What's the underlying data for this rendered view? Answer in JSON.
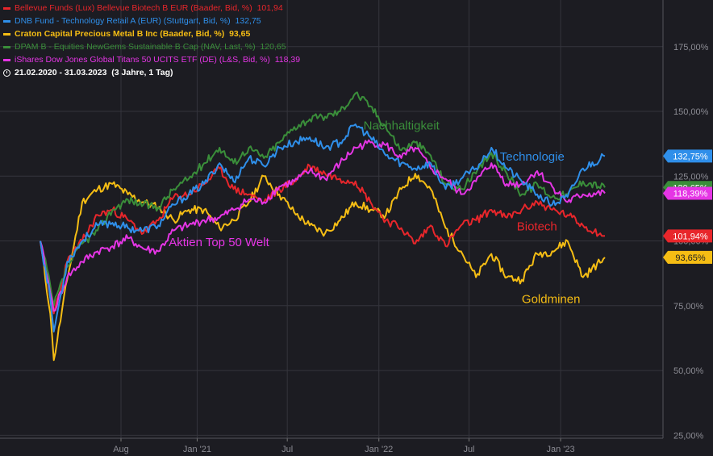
{
  "legend": {
    "items": [
      {
        "label": "Bellevue Funds (Lux) Bellevue Biotech B EUR (Baader, Bid, %)",
        "value": "101,94",
        "color": "#e8262b",
        "bold": false
      },
      {
        "label": "DNB Fund - Technology Retail A (EUR) (Stuttgart, Bid, %)",
        "value": "132,75",
        "color": "#2f8fea",
        "bold": false
      },
      {
        "label": "Craton Capital Precious Metal B Inc (Baader, Bid, %)",
        "value": "93,65",
        "color": "#f5bd14",
        "bold": true
      },
      {
        "label": "DPAM B - Equities NewGems Sustainable B Cap (NAV, Last, %)",
        "value": "120,65",
        "color": "#3a8e3a",
        "bold": false
      },
      {
        "label": "iShares Dow Jones Global Titans 50 UCITS ETF (DE) (L&S, Bid, %)",
        "value": "118,39",
        "color": "#e535e5",
        "bold": false
      }
    ],
    "period": "21.02.2020 - 31.03.2023",
    "period_detail": "(3 Jahre, 1 Tag)"
  },
  "colors": {
    "background": "#1c1c22",
    "grid": "#34343c",
    "axis_text": "#8c8c94",
    "biotech": "#e8262b",
    "technology": "#2f8fea",
    "gold": "#f5bd14",
    "sustainable": "#3a8e3a",
    "world": "#e535e5"
  },
  "chart_data": {
    "type": "line",
    "x_ticks": [
      "Aug",
      "Jan '21",
      "Jul",
      "Jan '22",
      "Jul",
      "Jan '23"
    ],
    "y_ticks": [
      "25,00%",
      "50,00%",
      "75,00%",
      "100,00%",
      "125,00%",
      "150,00%",
      "175,00%"
    ],
    "ylim": [
      17,
      193
    ],
    "x_range": [
      "2020-02-21",
      "2023-03-31"
    ],
    "annotations": [
      {
        "text": "Nachhaltigkeit",
        "series": "sustainable"
      },
      {
        "text": "Technologie",
        "series": "technology"
      },
      {
        "text": "Biotech",
        "series": "biotech"
      },
      {
        "text": "Aktien Top 50 Welt",
        "series": "world"
      },
      {
        "text": "Goldminen",
        "series": "gold"
      }
    ],
    "series": [
      {
        "key": "biotech",
        "color": "#e8262b",
        "last_label": "101,94%",
        "points": [
          [
            "2020-02-21",
            100
          ],
          [
            "2020-03-12",
            78
          ],
          [
            "2020-03-19",
            72
          ],
          [
            "2020-04-15",
            92
          ],
          [
            "2020-05-15",
            100
          ],
          [
            "2020-06-15",
            110
          ],
          [
            "2020-07-15",
            112
          ],
          [
            "2020-08-15",
            108
          ],
          [
            "2020-09-15",
            103
          ],
          [
            "2020-10-15",
            108
          ],
          [
            "2020-11-15",
            117
          ],
          [
            "2020-12-15",
            118
          ],
          [
            "2021-01-15",
            122
          ],
          [
            "2021-02-15",
            128
          ],
          [
            "2021-03-15",
            120
          ],
          [
            "2021-04-15",
            118
          ],
          [
            "2021-05-15",
            115
          ],
          [
            "2021-06-15",
            120
          ],
          [
            "2021-07-15",
            123
          ],
          [
            "2021-08-15",
            129
          ],
          [
            "2021-09-15",
            126
          ],
          [
            "2021-10-15",
            124
          ],
          [
            "2021-11-15",
            123
          ],
          [
            "2021-12-15",
            115
          ],
          [
            "2022-01-15",
            108
          ],
          [
            "2022-02-15",
            105
          ],
          [
            "2022-03-15",
            99
          ],
          [
            "2022-04-15",
            106
          ],
          [
            "2022-05-15",
            98
          ],
          [
            "2022-06-15",
            106
          ],
          [
            "2022-07-15",
            108
          ],
          [
            "2022-08-15",
            112
          ],
          [
            "2022-09-15",
            109
          ],
          [
            "2022-10-15",
            112
          ],
          [
            "2022-11-15",
            115
          ],
          [
            "2022-12-15",
            112
          ],
          [
            "2023-01-15",
            110
          ],
          [
            "2023-02-15",
            106
          ],
          [
            "2023-03-31",
            101.94
          ]
        ]
      },
      {
        "key": "technology",
        "color": "#2f8fea",
        "last_label": "132,75%",
        "points": [
          [
            "2020-02-21",
            100
          ],
          [
            "2020-03-12",
            78
          ],
          [
            "2020-03-19",
            65
          ],
          [
            "2020-04-15",
            92
          ],
          [
            "2020-05-15",
            100
          ],
          [
            "2020-06-15",
            106
          ],
          [
            "2020-07-15",
            107
          ],
          [
            "2020-08-15",
            105
          ],
          [
            "2020-09-15",
            104
          ],
          [
            "2020-10-15",
            106
          ],
          [
            "2020-11-15",
            114
          ],
          [
            "2020-12-15",
            118
          ],
          [
            "2021-01-15",
            122
          ],
          [
            "2021-02-15",
            130
          ],
          [
            "2021-03-15",
            123
          ],
          [
            "2021-04-15",
            132
          ],
          [
            "2021-05-15",
            129
          ],
          [
            "2021-06-15",
            136
          ],
          [
            "2021-07-15",
            138
          ],
          [
            "2021-08-15",
            140
          ],
          [
            "2021-09-15",
            136
          ],
          [
            "2021-10-15",
            138
          ],
          [
            "2021-11-15",
            145
          ],
          [
            "2021-12-15",
            140
          ],
          [
            "2022-01-15",
            133
          ],
          [
            "2022-02-15",
            130
          ],
          [
            "2022-03-15",
            128
          ],
          [
            "2022-04-15",
            130
          ],
          [
            "2022-05-15",
            120
          ],
          [
            "2022-06-15",
            124
          ],
          [
            "2022-07-15",
            128
          ],
          [
            "2022-08-15",
            136
          ],
          [
            "2022-09-15",
            128
          ],
          [
            "2022-10-15",
            123
          ],
          [
            "2022-11-15",
            118
          ],
          [
            "2022-12-15",
            114
          ],
          [
            "2023-01-15",
            117
          ],
          [
            "2023-02-15",
            128
          ],
          [
            "2023-03-31",
            132.75
          ]
        ]
      },
      {
        "key": "gold",
        "color": "#f5bd14",
        "last_label": "93,65%",
        "points": [
          [
            "2020-02-21",
            100
          ],
          [
            "2020-03-12",
            72
          ],
          [
            "2020-03-19",
            54
          ],
          [
            "2020-04-15",
            85
          ],
          [
            "2020-05-15",
            115
          ],
          [
            "2020-06-15",
            120
          ],
          [
            "2020-07-15",
            122
          ],
          [
            "2020-08-15",
            118
          ],
          [
            "2020-09-15",
            115
          ],
          [
            "2020-10-15",
            113
          ],
          [
            "2020-11-15",
            108
          ],
          [
            "2020-12-15",
            112
          ],
          [
            "2021-01-15",
            112
          ],
          [
            "2021-02-15",
            105
          ],
          [
            "2021-03-15",
            108
          ],
          [
            "2021-04-15",
            115
          ],
          [
            "2021-05-15",
            125
          ],
          [
            "2021-06-15",
            118
          ],
          [
            "2021-07-15",
            111
          ],
          [
            "2021-08-15",
            106
          ],
          [
            "2021-09-15",
            103
          ],
          [
            "2021-10-15",
            108
          ],
          [
            "2021-11-15",
            115
          ],
          [
            "2021-12-15",
            112
          ],
          [
            "2022-01-15",
            110
          ],
          [
            "2022-02-15",
            120
          ],
          [
            "2022-03-15",
            126
          ],
          [
            "2022-04-15",
            120
          ],
          [
            "2022-05-15",
            105
          ],
          [
            "2022-06-15",
            96
          ],
          [
            "2022-07-15",
            86
          ],
          [
            "2022-08-15",
            95
          ],
          [
            "2022-09-15",
            86
          ],
          [
            "2022-10-15",
            85
          ],
          [
            "2022-11-15",
            95
          ],
          [
            "2022-12-15",
            96
          ],
          [
            "2023-01-15",
            100
          ],
          [
            "2023-02-15",
            86
          ],
          [
            "2023-03-31",
            93.65
          ]
        ]
      },
      {
        "key": "sustainable",
        "color": "#3a8e3a",
        "last_label": "120,65%",
        "points": [
          [
            "2020-02-21",
            100
          ],
          [
            "2020-03-12",
            83
          ],
          [
            "2020-03-19",
            75
          ],
          [
            "2020-04-15",
            90
          ],
          [
            "2020-05-15",
            99
          ],
          [
            "2020-06-15",
            104
          ],
          [
            "2020-07-15",
            112
          ],
          [
            "2020-08-15",
            116
          ],
          [
            "2020-09-15",
            114
          ],
          [
            "2020-10-15",
            113
          ],
          [
            "2020-11-15",
            120
          ],
          [
            "2020-12-15",
            124
          ],
          [
            "2021-01-15",
            130
          ],
          [
            "2021-02-15",
            136
          ],
          [
            "2021-03-15",
            130
          ],
          [
            "2021-04-15",
            136
          ],
          [
            "2021-05-15",
            132
          ],
          [
            "2021-06-15",
            138
          ],
          [
            "2021-07-15",
            144
          ],
          [
            "2021-08-15",
            147
          ],
          [
            "2021-09-15",
            148
          ],
          [
            "2021-10-15",
            150
          ],
          [
            "2021-11-15",
            157
          ],
          [
            "2021-12-15",
            152
          ],
          [
            "2022-01-15",
            144
          ],
          [
            "2022-02-15",
            135
          ],
          [
            "2022-03-15",
            138
          ],
          [
            "2022-04-15",
            133
          ],
          [
            "2022-05-15",
            122
          ],
          [
            "2022-06-15",
            120
          ],
          [
            "2022-07-15",
            126
          ],
          [
            "2022-08-15",
            134
          ],
          [
            "2022-09-15",
            126
          ],
          [
            "2022-10-15",
            118
          ],
          [
            "2022-11-15",
            122
          ],
          [
            "2022-12-15",
            117
          ],
          [
            "2023-01-15",
            118
          ],
          [
            "2023-02-15",
            123
          ],
          [
            "2023-03-31",
            120.65
          ]
        ]
      },
      {
        "key": "world",
        "color": "#e535e5",
        "last_label": "118,39%",
        "points": [
          [
            "2020-02-21",
            100
          ],
          [
            "2020-03-12",
            80
          ],
          [
            "2020-03-19",
            73
          ],
          [
            "2020-04-15",
            86
          ],
          [
            "2020-05-15",
            92
          ],
          [
            "2020-06-15",
            96
          ],
          [
            "2020-07-15",
            98
          ],
          [
            "2020-08-15",
            101
          ],
          [
            "2020-09-15",
            97
          ],
          [
            "2020-10-15",
            96
          ],
          [
            "2020-11-15",
            104
          ],
          [
            "2020-12-15",
            106
          ],
          [
            "2021-01-15",
            108
          ],
          [
            "2021-02-15",
            109
          ],
          [
            "2021-03-15",
            112
          ],
          [
            "2021-04-15",
            116
          ],
          [
            "2021-05-15",
            115
          ],
          [
            "2021-06-15",
            121
          ],
          [
            "2021-07-15",
            123
          ],
          [
            "2021-08-15",
            127
          ],
          [
            "2021-09-15",
            124
          ],
          [
            "2021-10-15",
            130
          ],
          [
            "2021-11-15",
            136
          ],
          [
            "2021-12-15",
            138
          ],
          [
            "2022-01-15",
            137
          ],
          [
            "2022-02-15",
            132
          ],
          [
            "2022-03-15",
            136
          ],
          [
            "2022-04-15",
            128
          ],
          [
            "2022-05-15",
            124
          ],
          [
            "2022-06-15",
            118
          ],
          [
            "2022-07-15",
            123
          ],
          [
            "2022-08-15",
            130
          ],
          [
            "2022-09-15",
            122
          ],
          [
            "2022-10-15",
            122
          ],
          [
            "2022-11-15",
            127
          ],
          [
            "2022-12-15",
            121
          ],
          [
            "2023-01-15",
            115
          ],
          [
            "2023-02-15",
            118
          ],
          [
            "2023-03-31",
            118.39
          ]
        ]
      }
    ]
  }
}
